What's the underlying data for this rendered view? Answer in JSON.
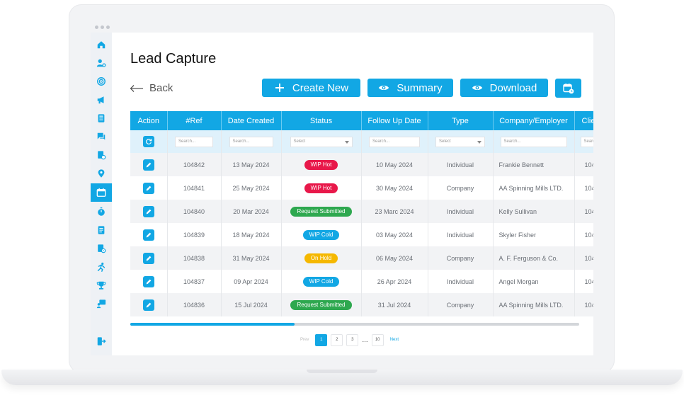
{
  "page": {
    "title": "Lead Capture",
    "back_label": "Back"
  },
  "toolbar": {
    "create_label": "Create New",
    "summary_label": "Summary",
    "download_label": "Download"
  },
  "colors": {
    "accent": "#12a7e4",
    "wip_hot": "#e8184a",
    "request_submitted": "#2ea84f",
    "wip_cold": "#12a7e4",
    "on_hold": "#f5b800"
  },
  "sidebar": {
    "items": [
      {
        "icon": "home-icon"
      },
      {
        "icon": "user-settings-icon"
      },
      {
        "icon": "target-icon"
      },
      {
        "icon": "megaphone-icon"
      },
      {
        "icon": "checklist-icon"
      },
      {
        "icon": "chat-icon"
      },
      {
        "icon": "document-gear-icon"
      },
      {
        "icon": "location-pin-icon"
      },
      {
        "icon": "calendar-icon",
        "active": true
      },
      {
        "icon": "stopwatch-icon"
      },
      {
        "icon": "report-icon"
      },
      {
        "icon": "settings-doc-icon"
      },
      {
        "icon": "runner-icon"
      },
      {
        "icon": "trophy-icon"
      },
      {
        "icon": "presentation-icon"
      },
      {
        "icon": "logout-icon"
      }
    ]
  },
  "table": {
    "columns": [
      "Action",
      "#Ref",
      "Date Created",
      "Status",
      "Follow Up Date",
      "Type",
      "Company/Employer",
      "Clie"
    ],
    "filter_placeholders": {
      "search": "Search...",
      "select": "Select"
    },
    "rows": [
      {
        "ref": "104842",
        "created": "13 May 2024",
        "status": "WIP Hot",
        "status_color": "#e8184a",
        "follow": "10 May 2024",
        "type": "Individual",
        "company": "Frankie Bennett",
        "client": "104"
      },
      {
        "ref": "104841",
        "created": "25 May 2024",
        "status": "WIP Hot",
        "status_color": "#e8184a",
        "follow": "30 May 2024",
        "type": "Company",
        "company": "AA Spinning Mills LTD.",
        "client": "104"
      },
      {
        "ref": "104840",
        "created": "20 Mar 2024",
        "status": "Request Submitted",
        "status_color": "#2ea84f",
        "follow": "23 Marc 2024",
        "type": "Individual",
        "company": "Kelly Sullivan",
        "client": "104"
      },
      {
        "ref": "104839",
        "created": "18 May 2024",
        "status": "WIP Cold",
        "status_color": "#12a7e4",
        "follow": "03 May 2024",
        "type": "Individual",
        "company": "Skyler Fisher",
        "client": "104"
      },
      {
        "ref": "104838",
        "created": "31 May 2024",
        "status": "On Hold",
        "status_color": "#f5b800",
        "follow": "06 May 2024",
        "type": "Company",
        "company": "A. F. Ferguson & Co.",
        "client": "104"
      },
      {
        "ref": "104837",
        "created": "09 Apr 2024",
        "status": "WIP Cold",
        "status_color": "#12a7e4",
        "follow": "26 Apr 2024",
        "type": "Individual",
        "company": "Angel Morgan",
        "client": "104"
      },
      {
        "ref": "104836",
        "created": "15 Jul 2024",
        "status": "Request Submitted",
        "status_color": "#2ea84f",
        "follow": "31 Jul 2024",
        "type": "Company",
        "company": "AA Spinning Mills LTD.",
        "client": "104"
      }
    ]
  },
  "pagination": {
    "prev": "Prev",
    "pages": [
      "1",
      "2",
      "3"
    ],
    "ellipsis": "...",
    "last": "10",
    "next": "Next",
    "current": "1"
  }
}
